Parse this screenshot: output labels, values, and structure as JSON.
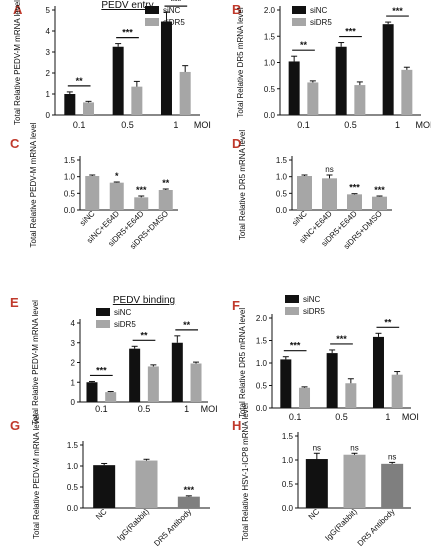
{
  "colors": {
    "black": "#111111",
    "grey": "#a6a6a6",
    "mid": "#7f7f7f",
    "sig": "#111111"
  },
  "chart_data": [
    {
      "id": "A",
      "letter": "A",
      "type": "bar",
      "title": "PEDV entry",
      "ylabel": "Total Relative PEDV-M mRNA level",
      "categories": [
        "0.1",
        "0.5",
        "1"
      ],
      "xunit": "MOI",
      "ylim": [
        0,
        5
      ],
      "yticks": [
        0,
        1,
        2,
        3,
        4,
        5
      ],
      "legend": [
        "siNC",
        "siDR5"
      ],
      "series": [
        {
          "name": "siNC",
          "color": "black",
          "values": [
            1.0,
            3.25,
            4.45
          ],
          "errors": [
            0.1,
            0.15,
            0.45
          ]
        },
        {
          "name": "siDR5",
          "color": "grey",
          "values": [
            0.6,
            1.35,
            2.05
          ],
          "errors": [
            0.05,
            0.25,
            0.3
          ]
        }
      ],
      "sig": [
        "**",
        "***",
        "***"
      ]
    },
    {
      "id": "B",
      "letter": "B",
      "type": "bar",
      "ylabel": "Total Relative DR5 mRNA level",
      "categories": [
        "0.1",
        "0.5",
        "1"
      ],
      "xunit": "MOI",
      "ylim": [
        0,
        2.0
      ],
      "yticks": [
        0.0,
        0.5,
        1.0,
        1.5,
        2.0
      ],
      "legend": [
        "siNC",
        "siDR5"
      ],
      "series": [
        {
          "name": "siNC",
          "color": "black",
          "values": [
            1.02,
            1.3,
            1.73
          ],
          "errors": [
            0.1,
            0.08,
            0.04
          ]
        },
        {
          "name": "siDR5",
          "color": "grey",
          "values": [
            0.62,
            0.57,
            0.86
          ],
          "errors": [
            0.03,
            0.06,
            0.05
          ]
        }
      ],
      "sig": [
        "**",
        "***",
        "***"
      ]
    },
    {
      "id": "C",
      "letter": "C",
      "type": "bar",
      "ylabel": "Total Relative PEDV-M mRNA level",
      "categories": [
        "siNC",
        "siNC+E64D",
        "siDR5+E64D",
        "siDR5+DMSO"
      ],
      "ylim": [
        0,
        1.5
      ],
      "yticks": [
        0.0,
        0.5,
        1.0,
        1.5
      ],
      "values": [
        1.02,
        0.82,
        0.38,
        0.6
      ],
      "errors": [
        0.03,
        0.02,
        0.04,
        0.03
      ],
      "colors": [
        "grey",
        "grey",
        "grey",
        "grey"
      ],
      "annot": [
        "",
        "*",
        "***",
        "**"
      ]
    },
    {
      "id": "D",
      "letter": "D",
      "type": "bar",
      "ylabel": "Total Relative DR5 mRNA level",
      "categories": [
        "siNC",
        "siNC+E64D",
        "siDR5+E64D",
        "siDR5+DMSO"
      ],
      "ylim": [
        0,
        1.5
      ],
      "yticks": [
        0.0,
        0.5,
        1.0,
        1.5
      ],
      "values": [
        1.02,
        0.95,
        0.47,
        0.4
      ],
      "errors": [
        0.03,
        0.1,
        0.02,
        0.02
      ],
      "colors": [
        "grey",
        "grey",
        "grey",
        "grey"
      ],
      "annot": [
        "",
        "ns",
        "***",
        "***"
      ]
    },
    {
      "id": "E",
      "letter": "E",
      "type": "bar",
      "title": "PEDV binding",
      "ylabel": "Total Relative PEDV-M mRNA level",
      "categories": [
        "0.1",
        "0.5",
        "1"
      ],
      "xunit": "MOI",
      "ylim": [
        0,
        4
      ],
      "yticks": [
        0,
        1,
        2,
        3,
        4
      ],
      "legend": [
        "siNC",
        "siDR5"
      ],
      "series": [
        {
          "name": "siNC",
          "color": "black",
          "values": [
            1.0,
            2.7,
            3.0
          ],
          "errors": [
            0.04,
            0.12,
            0.35
          ]
        },
        {
          "name": "siDR5",
          "color": "grey",
          "values": [
            0.5,
            1.8,
            1.95
          ],
          "errors": [
            0.03,
            0.08,
            0.07
          ]
        }
      ],
      "sig": [
        "***",
        "**",
        "**"
      ]
    },
    {
      "id": "F",
      "letter": "F",
      "type": "bar",
      "ylabel": "Total Relative DR5 mRNA level",
      "categories": [
        "0.1",
        "0.5",
        "1"
      ],
      "xunit": "MOI",
      "ylim": [
        0,
        2.0
      ],
      "yticks": [
        0.0,
        0.5,
        1.0,
        1.5,
        2.0
      ],
      "legend": [
        "siNC",
        "siDR5"
      ],
      "series": [
        {
          "name": "siNC",
          "color": "black",
          "values": [
            1.08,
            1.22,
            1.58
          ],
          "errors": [
            0.06,
            0.07,
            0.08
          ]
        },
        {
          "name": "siDR5",
          "color": "grey",
          "values": [
            0.45,
            0.55,
            0.74
          ],
          "errors": [
            0.02,
            0.1,
            0.07
          ]
        }
      ],
      "sig": [
        "***",
        "***",
        "**"
      ]
    },
    {
      "id": "G",
      "letter": "G",
      "type": "bar",
      "ylabel": "Total Relative PEDV-M mRNA level",
      "categories": [
        "NC",
        "IgG(Rabbit)",
        "DR5 Antibody"
      ],
      "ylim": [
        0,
        1.5
      ],
      "yticks": [
        0.0,
        0.5,
        1.0,
        1.5
      ],
      "values": [
        1.02,
        1.13,
        0.27
      ],
      "errors": [
        0.04,
        0.03,
        0.02
      ],
      "colors": [
        "black",
        "grey",
        "mid"
      ],
      "annot": [
        "",
        "",
        "***"
      ]
    },
    {
      "id": "H",
      "letter": "H",
      "type": "bar",
      "ylabel": "Total Relative HSV-1-ICP8 mRNA level",
      "categories": [
        "NC",
        "IgG(Rabbit)",
        "DR5 Antibody"
      ],
      "ylim": [
        0,
        1.5
      ],
      "yticks": [
        0.0,
        0.5,
        1.0,
        1.5
      ],
      "values": [
        1.02,
        1.11,
        0.92
      ],
      "errors": [
        0.12,
        0.03,
        0.03
      ],
      "colors": [
        "black",
        "grey",
        "mid"
      ],
      "annot": [
        "ns",
        "ns",
        "ns"
      ]
    }
  ]
}
